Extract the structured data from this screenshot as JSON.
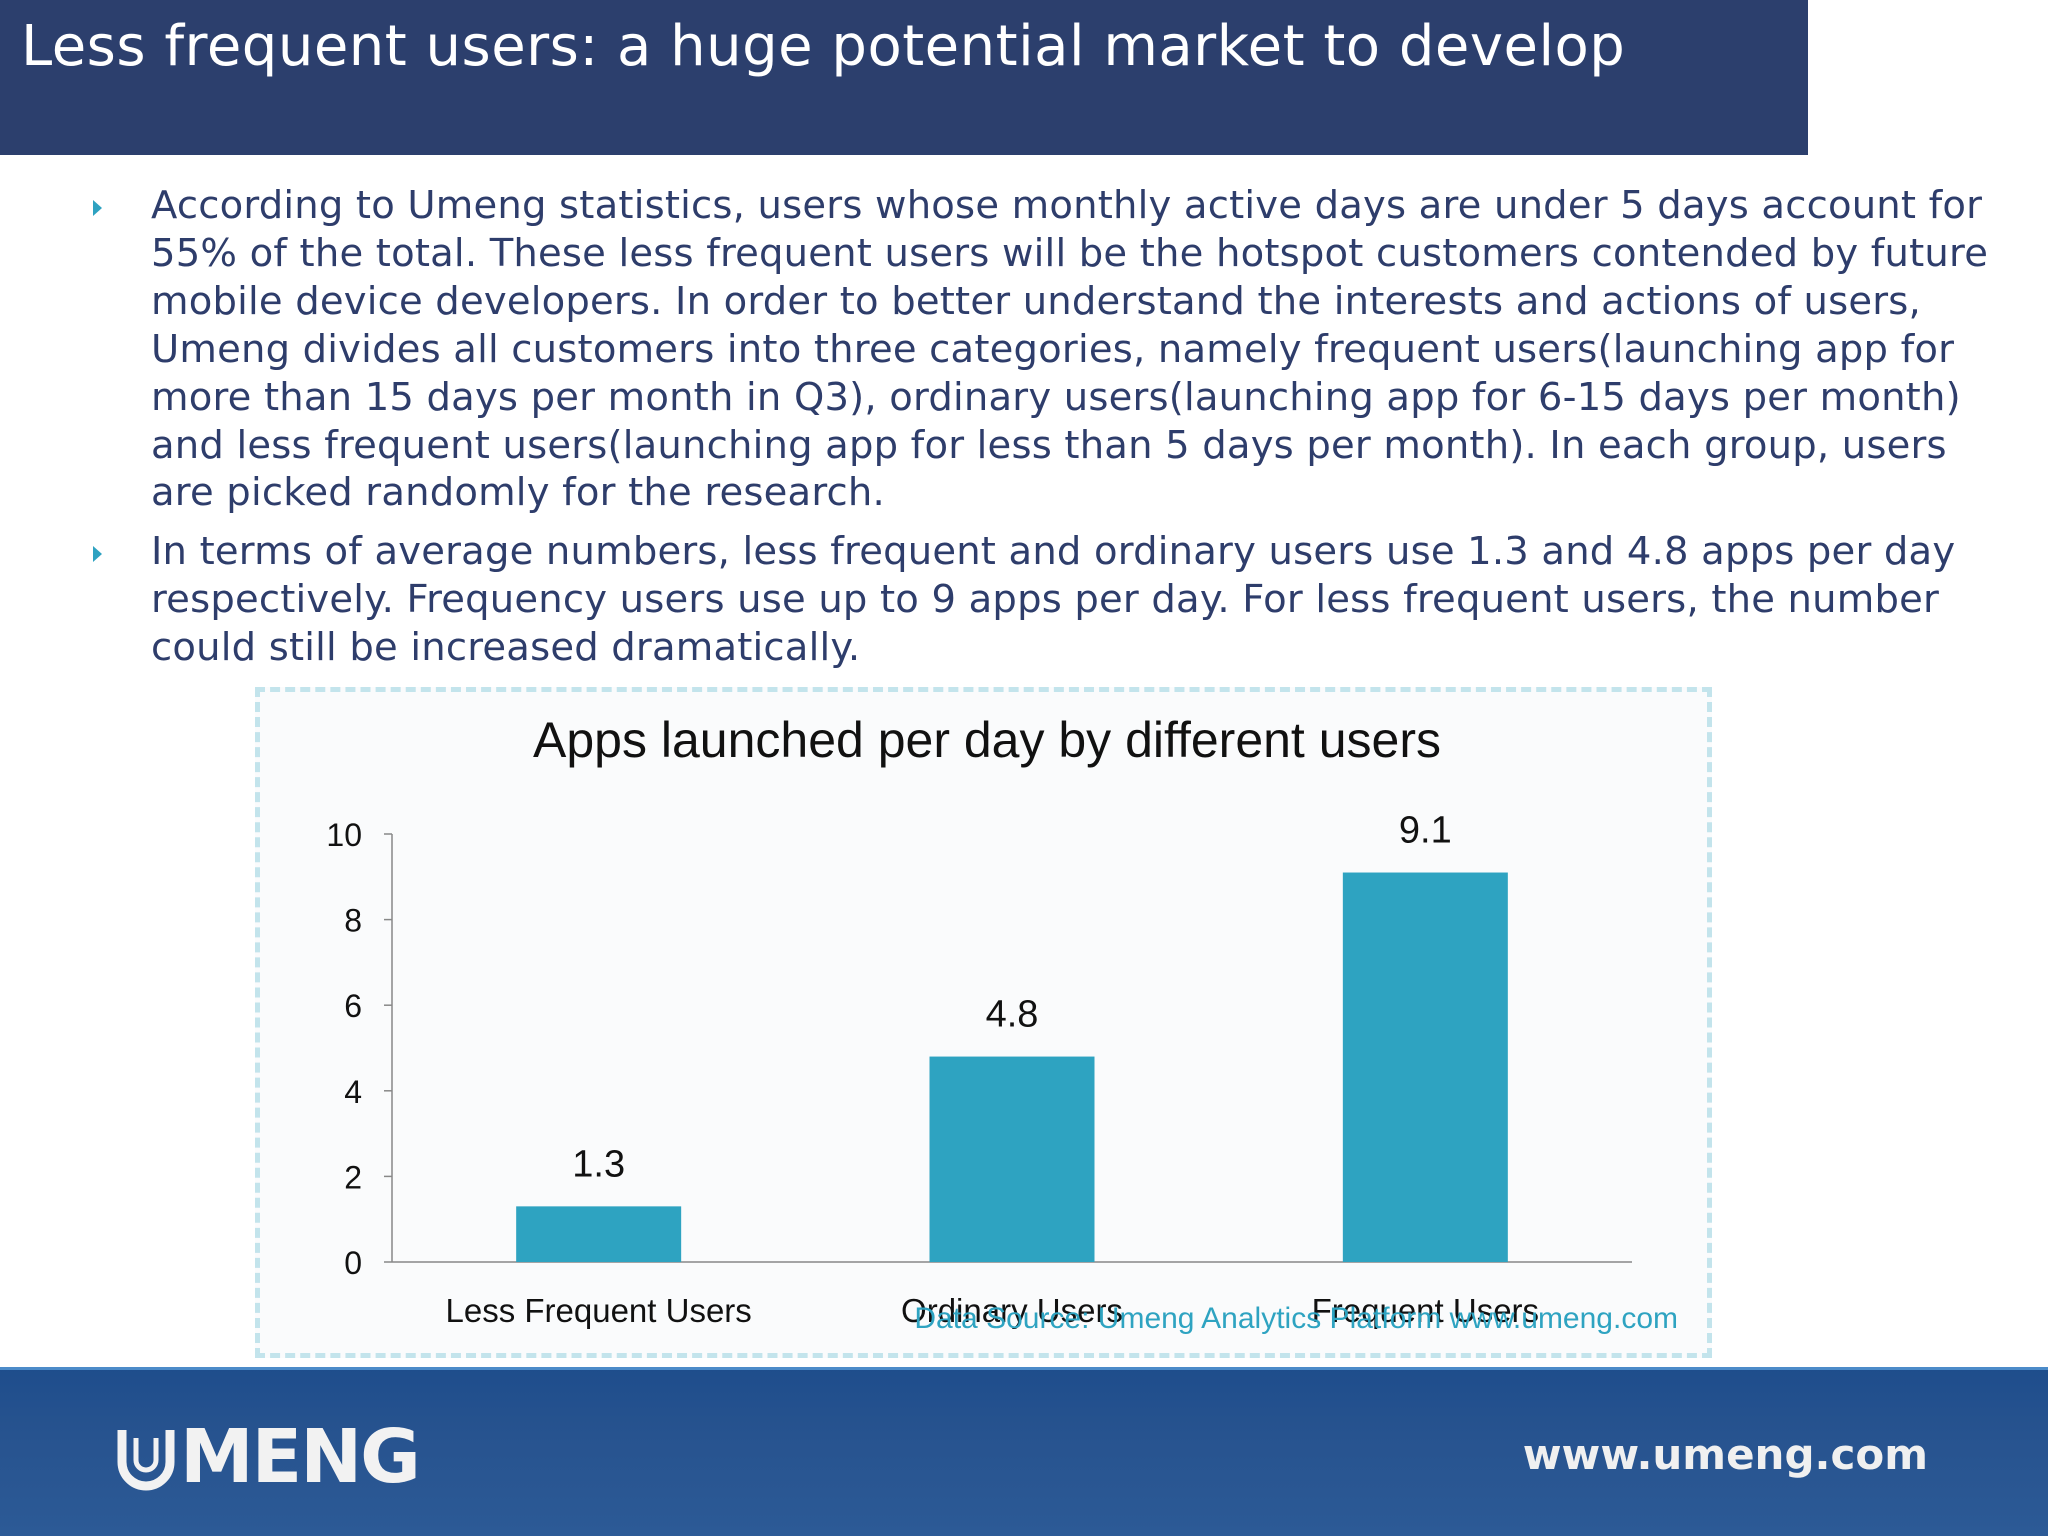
{
  "header": {
    "title": "Less frequent users: a huge potential market to develop"
  },
  "bullets": [
    "According to Umeng statistics, users whose monthly active days are under 5 days account for 55% of the total. These less frequent users will be the hotspot customers contended by future mobile device developers. In order to better understand the interests and actions of users, Umeng divides all customers into three categories, namely frequent users(launching app for more than 15 days per month in Q3), ordinary users(launching app for 6-15 days per month) and less frequent users(launching app for less than 5 days per month). In each group, users are picked randomly for the research.",
    "In terms of average numbers, less frequent and ordinary users use 1.3 and 4.8 apps per day respectively. Frequency users use up to 9 apps per day. For less frequent users, the number could still be increased dramatically."
  ],
  "chart_data": {
    "type": "bar",
    "title": "Apps launched per day by different users",
    "categories": [
      "Less Frequent Users",
      "Ordinary Users",
      "Frequent Users"
    ],
    "values": [
      1.3,
      4.8,
      9.1
    ],
    "data_labels": [
      "1.3",
      "4.8",
      "9.1"
    ],
    "yticks": [
      "0",
      "2",
      "4",
      "6",
      "8",
      "10"
    ],
    "ylim": [
      0,
      10
    ],
    "xlabel": "",
    "ylabel": "",
    "grid": false,
    "legend": "none",
    "bar_color": "#2ea3c1",
    "source_note": "Data Source: Umeng Analytics Platform www.umeng.com"
  },
  "footer": {
    "logo_text": "MENG",
    "url": "www.umeng.com"
  },
  "colors": {
    "header_bg": "#2c3f6d",
    "footer_bg": "#27538f",
    "body_text": "#2e3d6b",
    "accent": "#2ea3c1"
  },
  "icons": {
    "bullet": "triangle-bullet-icon",
    "logo": "umeng-logo-icon"
  }
}
